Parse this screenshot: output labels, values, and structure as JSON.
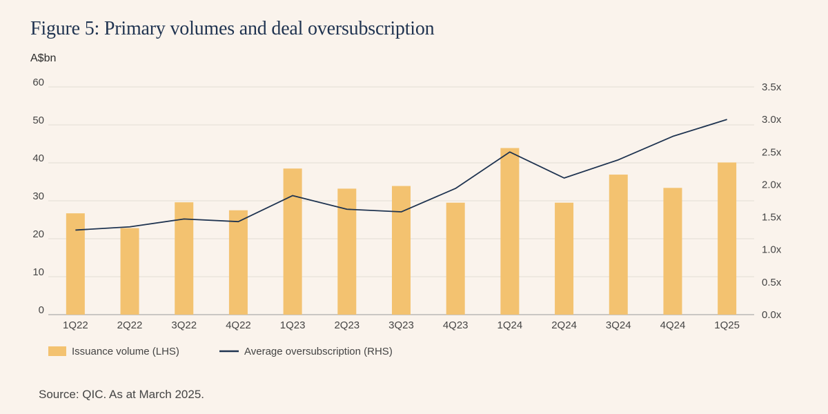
{
  "title": "Figure 5: Primary volumes and deal oversubscription",
  "source": "Source: QIC. As at March 2025.",
  "colors": {
    "bar": "#f3c270",
    "line": "#1e3350",
    "grid": "#e3ddd5",
    "axis": "#9a9a9a"
  },
  "chart_data": {
    "type": "bar",
    "title": "Figure 5: Primary volumes and deal oversubscription",
    "ylabel": "A$bn",
    "categories": [
      "1Q22",
      "2Q22",
      "3Q22",
      "4Q22",
      "1Q23",
      "2Q23",
      "3Q23",
      "4Q23",
      "1Q24",
      "2Q24",
      "3Q24",
      "4Q24",
      "1Q25"
    ],
    "left_ticks": [
      "0",
      "10",
      "20",
      "30",
      "40",
      "50",
      "60"
    ],
    "right_ticks": [
      "0.0x",
      "0.5x",
      "1.0x",
      "1.5x",
      "2.0x",
      "2.5x",
      "3.0x",
      "3.5x"
    ],
    "ylim": [
      0,
      60
    ],
    "y2lim": [
      0,
      3.5
    ],
    "series": [
      {
        "name": "Issuance volume (LHS)",
        "kind": "bar",
        "axis": "left",
        "values": [
          26.7,
          22.8,
          29.6,
          27.5,
          38.5,
          33.2,
          33.9,
          29.5,
          43.9,
          29.5,
          36.9,
          33.4,
          40.1
        ]
      },
      {
        "name": "Average oversubscription (RHS)",
        "kind": "line",
        "axis": "right",
        "values": [
          1.3,
          1.35,
          1.47,
          1.43,
          1.83,
          1.62,
          1.58,
          1.94,
          2.5,
          2.1,
          2.38,
          2.74,
          3.0
        ]
      }
    ],
    "legend": "bottom-left"
  }
}
